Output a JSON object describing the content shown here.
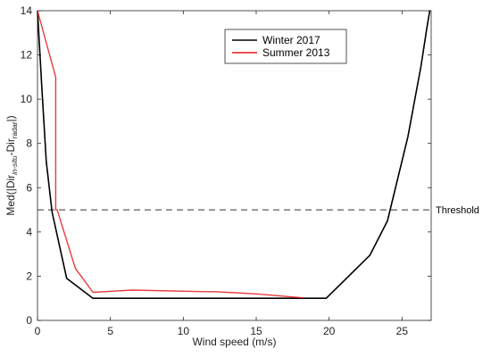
{
  "chart_data": {
    "type": "line",
    "xlabel": "Wind speed (m/s)",
    "ylabel_parts": [
      "Med(|Dir",
      "in-situ",
      "-Dir",
      "radar",
      "|)"
    ],
    "xlim": [
      0,
      27
    ],
    "ylim": [
      0,
      14
    ],
    "xticks": [
      0,
      5,
      10,
      15,
      20,
      25
    ],
    "yticks": [
      0,
      2,
      4,
      6,
      8,
      10,
      12,
      14
    ],
    "grid": false,
    "legend_position": "top-center",
    "series": [
      {
        "name": "Winter 2017",
        "color": "#000000",
        "x": [
          0,
          0.3,
          0.6,
          1.0,
          2.0,
          3.8,
          6.0,
          10.0,
          15.0,
          19.8,
          22.8,
          24.0,
          25.4,
          26.3,
          26.7,
          26.9
        ],
        "y": [
          14,
          10.5,
          7.2,
          4.9,
          1.9,
          1.0,
          1.0,
          1.0,
          1.0,
          1.0,
          2.95,
          4.5,
          8.3,
          11.5,
          13.2,
          14
        ]
      },
      {
        "name": "Summer 2013",
        "color": "#e41a1c",
        "x": [
          0,
          1.25,
          1.25,
          1.35,
          2.6,
          3.8,
          6.5,
          11.5,
          12.2,
          15.0,
          18.2
        ],
        "y": [
          14,
          11.0,
          5.0,
          5.0,
          2.35,
          1.27,
          1.37,
          1.3,
          1.3,
          1.2,
          1.02
        ]
      }
    ],
    "threshold": {
      "y": 5,
      "label": "Threshold"
    }
  }
}
